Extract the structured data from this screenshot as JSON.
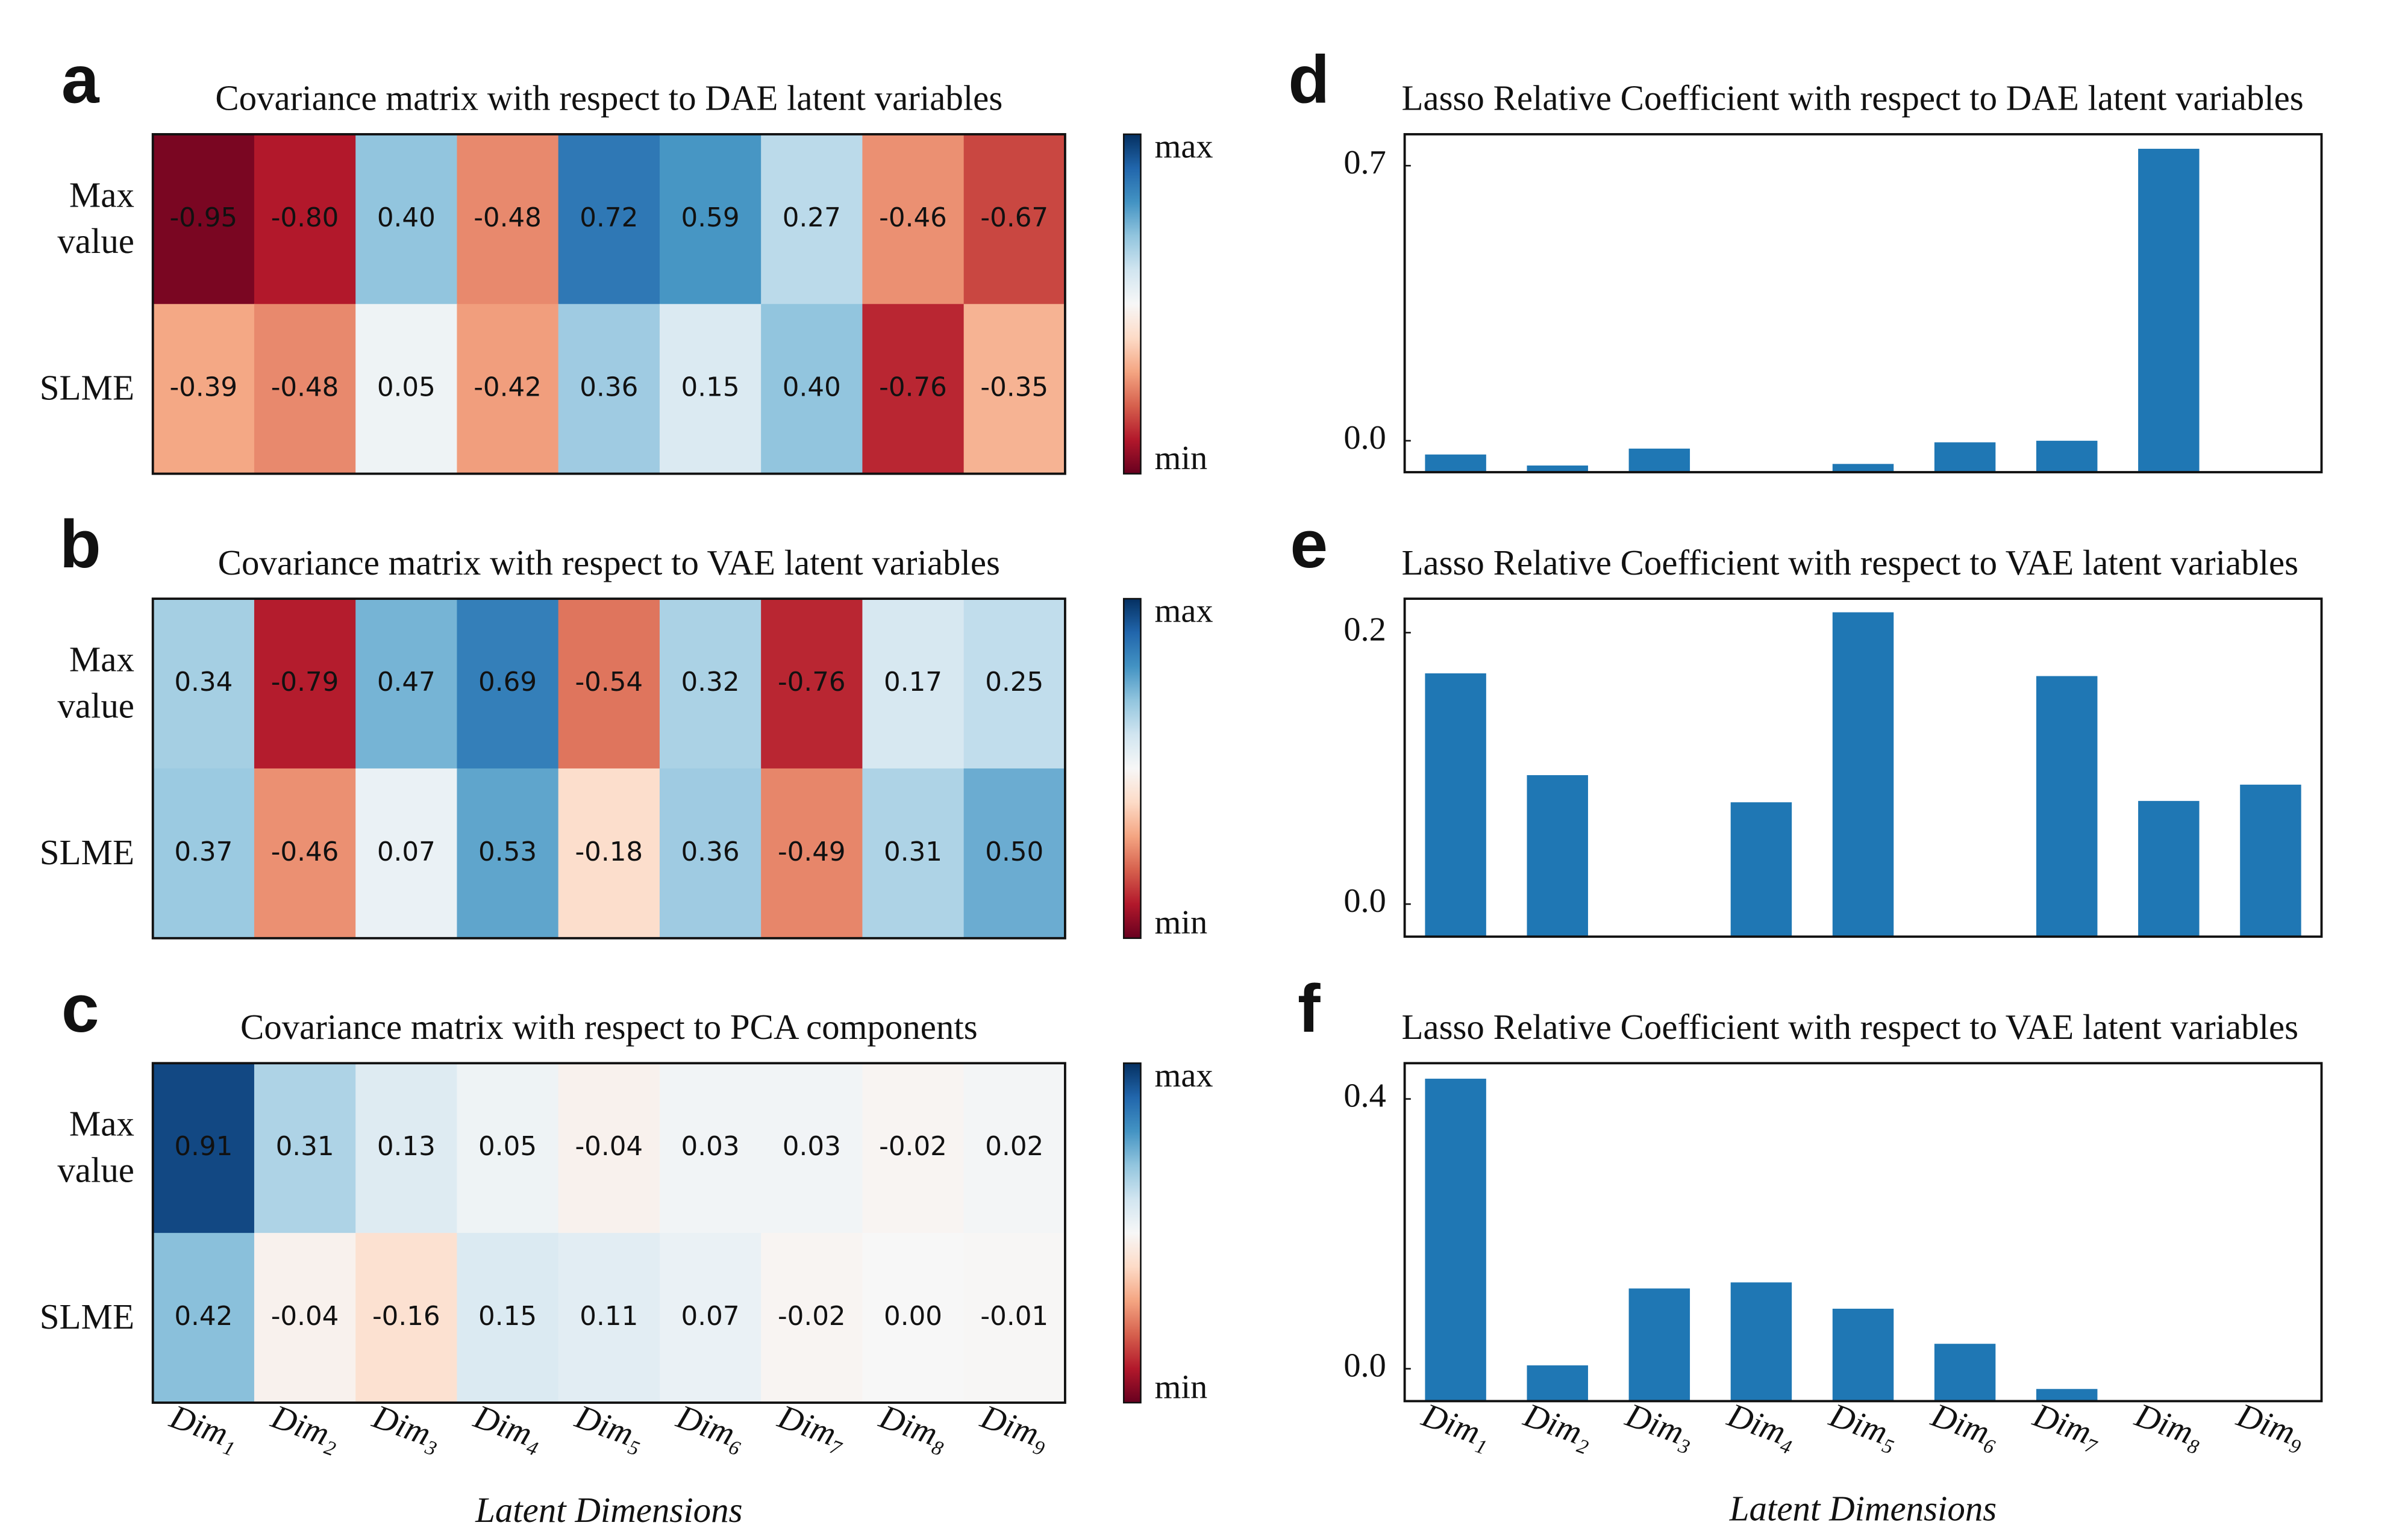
{
  "chart_data": [
    {
      "type": "heatmap",
      "panel_label": "a",
      "title": "Covariance matrix with respect to DAE latent variables",
      "rows": [
        "Max value",
        "SLME"
      ],
      "colormap": "RdBu",
      "clim": [
        -1,
        1
      ],
      "colorbar_labels": [
        "max",
        "min"
      ],
      "values": [
        [
          -0.95,
          -0.8,
          0.4,
          -0.48,
          0.72,
          0.59,
          0.27,
          -0.46,
          -0.67
        ],
        [
          -0.39,
          -0.48,
          0.05,
          -0.42,
          0.36,
          0.15,
          0.4,
          -0.76,
          -0.35
        ]
      ],
      "value_labels": [
        [
          "-0.95",
          "-0.80",
          "0.40",
          "-0.48",
          "0.72",
          "0.59",
          "0.27",
          "-0.46",
          "-0.67"
        ],
        [
          "-0.39",
          "-0.48",
          "0.05",
          "-0.42",
          "0.36",
          "0.15",
          "0.40",
          "-0.76",
          "-0.35"
        ]
      ]
    },
    {
      "type": "heatmap",
      "panel_label": "b",
      "title": "Covariance matrix with respect to VAE latent variables",
      "rows": [
        "Max value",
        "SLME"
      ],
      "colormap": "RdBu",
      "clim": [
        -1,
        1
      ],
      "colorbar_labels": [
        "max",
        "min"
      ],
      "values": [
        [
          0.34,
          -0.79,
          0.47,
          0.69,
          -0.54,
          0.32,
          -0.76,
          0.17,
          0.25
        ],
        [
          0.37,
          -0.46,
          0.07,
          0.53,
          -0.18,
          0.36,
          -0.49,
          0.31,
          0.5
        ]
      ],
      "value_labels": [
        [
          "0.34",
          "-0.79",
          "0.47",
          "0.69",
          "-0.54",
          "0.32",
          "-0.76",
          "0.17",
          "0.25"
        ],
        [
          "0.37",
          "-0.46",
          "0.07",
          "0.53",
          "-0.18",
          "0.36",
          "-0.49",
          "0.31",
          "0.50"
        ]
      ]
    },
    {
      "type": "heatmap",
      "panel_label": "c",
      "title": "Covariance matrix with respect to PCA components",
      "rows": [
        "Max value",
        "SLME"
      ],
      "colormap": "RdBu",
      "clim": [
        -1,
        1
      ],
      "colorbar_labels": [
        "max",
        "min"
      ],
      "categories": [
        "Dim₁",
        "Dim₂",
        "Dim₃",
        "Dim₄",
        "Dim₅",
        "Dim₆",
        "Dim₇",
        "Dim₈",
        "Dim₉"
      ],
      "x_label": "Latent Dimensions",
      "values": [
        [
          0.91,
          0.31,
          0.13,
          0.05,
          -0.04,
          0.03,
          0.03,
          -0.02,
          0.02
        ],
        [
          0.42,
          -0.04,
          -0.16,
          0.15,
          0.11,
          0.07,
          -0.02,
          0.0,
          -0.01
        ]
      ],
      "value_labels": [
        [
          "0.91",
          "0.31",
          "0.13",
          "0.05",
          "-0.04",
          "0.03",
          "0.03",
          "-0.02",
          "0.02"
        ],
        [
          "0.42",
          "-0.04",
          "-0.16",
          "0.15",
          "0.11",
          "0.07",
          "-0.02",
          "0.00",
          "-0.01"
        ]
      ]
    },
    {
      "type": "bar",
      "panel_label": "d",
      "title": "Lasso Relative Coefficient with respect to DAE latent variables",
      "color": "#1f77b4",
      "ylim": [
        -0.08,
        0.78
      ],
      "yticks": [
        {
          "value": 0,
          "label": "0.0"
        },
        0.7
      ],
      "values": [
        -0.035,
        -0.063,
        -0.02,
        null,
        -0.059,
        -0.004,
        0.0,
        0.743,
        null
      ]
    },
    {
      "type": "bar",
      "panel_label": "e",
      "title": "Lasso Relative Coefficient with respect to VAE latent variables",
      "color": "#1f77b4",
      "ylim": [
        -0.024,
        0.225
      ],
      "yticks": [
        {
          "value": 0,
          "label": "0.0"
        },
        0.2
      ],
      "values": [
        0.17,
        0.095,
        null,
        0.075,
        0.215,
        null,
        0.168,
        0.076,
        0.088
      ]
    },
    {
      "type": "bar",
      "panel_label": "f",
      "title": "Lasso Relative Coefficient with respect to VAE latent variables",
      "color": "#1f77b4",
      "ylim": [
        -0.048,
        0.453
      ],
      "yticks": [
        {
          "value": 0,
          "label": "0.0"
        },
        0.4
      ],
      "categories": [
        "Dim₁",
        "Dim₂",
        "Dim₃",
        "Dim₄",
        "Dim₅",
        "Dim₆",
        "Dim₇",
        "Dim₈",
        "Dim₉"
      ],
      "x_label": "Latent Dimensions",
      "values": [
        0.43,
        0.005,
        0.119,
        0.128,
        0.089,
        0.037,
        -0.03,
        null,
        null
      ]
    }
  ]
}
